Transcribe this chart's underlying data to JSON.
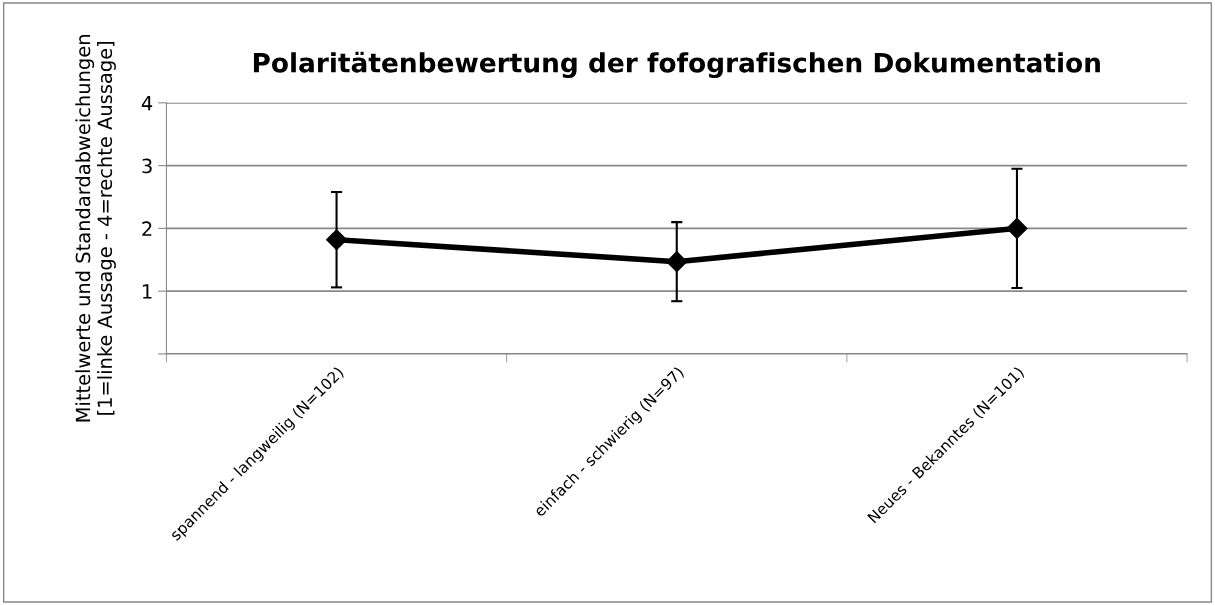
{
  "chart_data": {
    "type": "line",
    "title": "Polaritätenbewertung der fofografischen Dokumentation",
    "ylabel": "Mittelwerte und Standardabweichungen\n[1=linke Aussage - 4=rechte Aussage]",
    "categories": [
      "spannend - langweilig (N=102)",
      "einfach - schwierig (N=97)",
      "Neues - Bekanntes (N=101)"
    ],
    "series": [
      {
        "color": "#000000",
        "values": [
          1.82,
          1.47,
          2.0
        ],
        "errors": [
          0.76,
          0.63,
          0.95
        ]
      }
    ],
    "ylim": [
      0,
      4
    ],
    "yticks": [
      {
        "value": 0,
        "label": null
      },
      1,
      2,
      3,
      4
    ],
    "grid": "y",
    "marker": "diamond",
    "line_style": "solid",
    "legend": false
  }
}
